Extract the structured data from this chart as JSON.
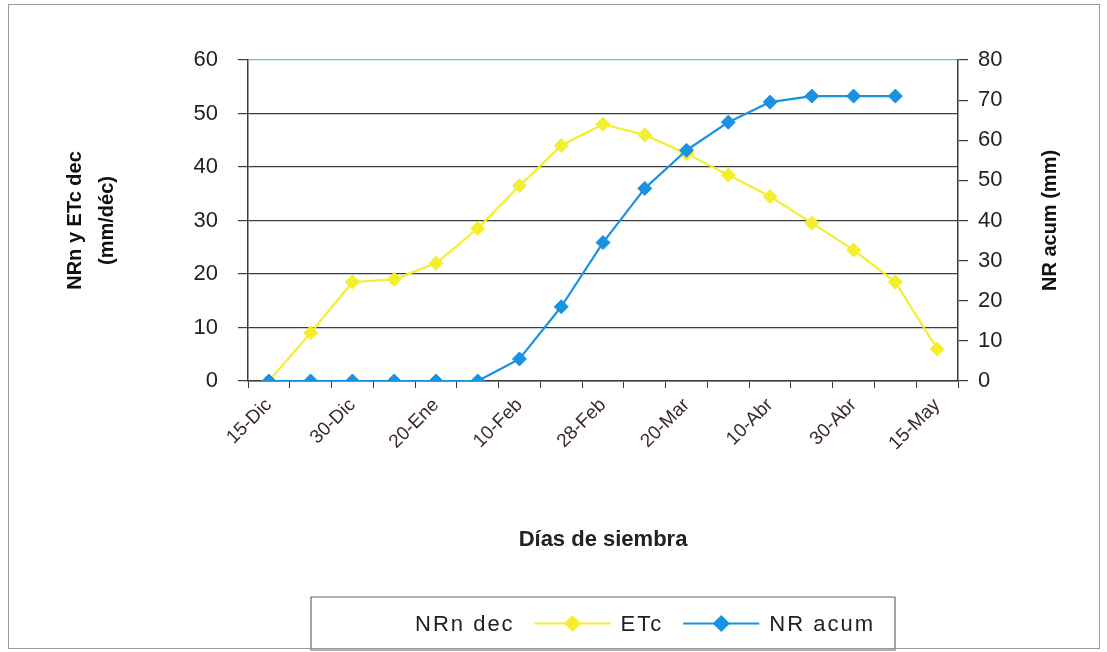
{
  "chart_data": {
    "type": "line",
    "xlabel": "Días de siembra",
    "ylabel": "NRn y ETc dec\n(mm/déc)",
    "y2label": "NR acum (mm)",
    "categories": [
      "15-Dic",
      null,
      "30-Dic",
      null,
      "20-Ene",
      null,
      "10-Feb",
      null,
      "28-Feb",
      null,
      "20-Mar",
      null,
      "10-Abr",
      null,
      "30-Abr",
      null,
      "15-May"
    ],
    "series": [
      {
        "name": "NRn dec",
        "values": [
          null,
          null,
          null,
          null,
          null,
          null,
          null,
          null,
          null,
          null,
          null,
          null,
          null,
          null,
          null,
          null,
          null
        ]
      },
      {
        "name": "ETc",
        "color": "#f4ef2c",
        "values": [
          0,
          9,
          18.5,
          19,
          22,
          28.5,
          36.5,
          44,
          48,
          46,
          42.5,
          38.5,
          34.5,
          29.5,
          24.5,
          18.5,
          6
        ]
      },
      {
        "name": "NR acum",
        "color": "#1a92e2",
        "axis": "y2",
        "values": [
          0,
          0,
          0,
          0,
          0,
          0,
          5.5,
          18.5,
          34.5,
          48,
          57.5,
          64.5,
          69.5,
          71,
          71,
          71,
          null
        ]
      }
    ],
    "ylim": [
      0,
      60
    ],
    "yticks": [
      0,
      10,
      20,
      30,
      40,
      50,
      60
    ],
    "y2lim": [
      0,
      80
    ],
    "y2ticks": [
      0,
      10,
      20,
      30,
      40,
      50,
      60,
      70,
      80
    ],
    "grid": "y",
    "legend": "bottom",
    "marker": "diamond",
    "line_style": "solid"
  }
}
